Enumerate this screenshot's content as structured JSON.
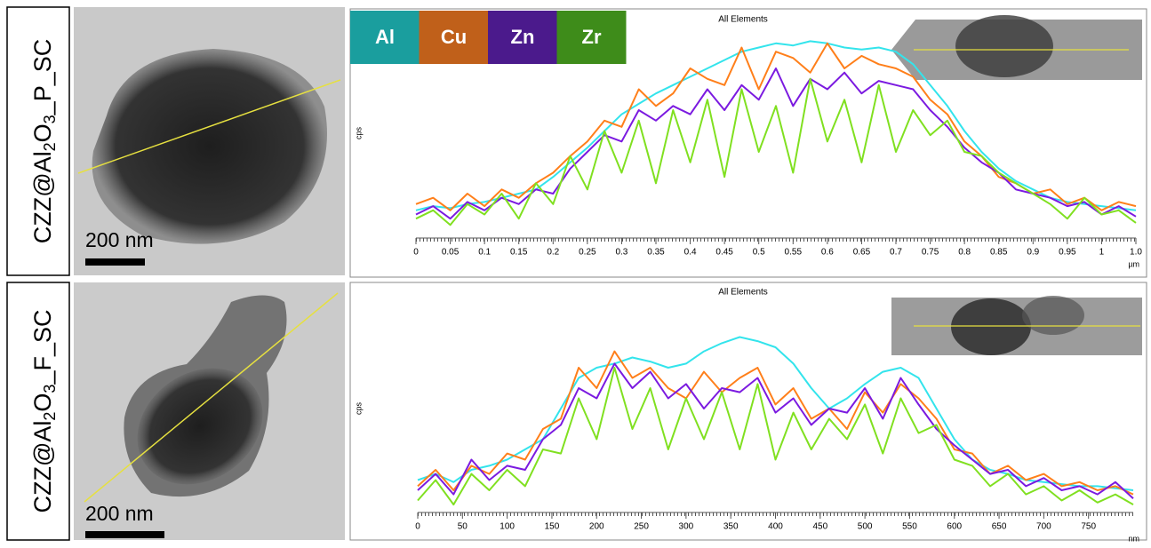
{
  "panels": [
    {
      "label_parts": [
        "CZZ@Al",
        "2",
        "O",
        "3",
        "_P_SC"
      ],
      "scale_bar": "200 nm"
    },
    {
      "label_parts": [
        "CZZ@Al",
        "2",
        "O",
        "3",
        "_F_SC"
      ],
      "scale_bar": "200 nm"
    }
  ],
  "chart_data": [
    {
      "type": "line",
      "title": "All Elements",
      "y_label": "cps",
      "x_unit": "µm",
      "legend": true,
      "x": [
        0,
        0.025,
        0.05,
        0.075,
        0.1,
        0.125,
        0.15,
        0.175,
        0.2,
        0.225,
        0.25,
        0.275,
        0.3,
        0.325,
        0.35,
        0.375,
        0.4,
        0.425,
        0.45,
        0.475,
        0.5,
        0.525,
        0.55,
        0.575,
        0.6,
        0.625,
        0.65,
        0.675,
        0.7,
        0.725,
        0.75,
        0.775,
        0.8,
        0.825,
        0.85,
        0.875,
        0.9,
        0.925,
        0.95,
        0.975,
        1,
        1.025,
        1.05
      ],
      "xlim": [
        0,
        1.05
      ],
      "xticks": [
        0,
        0.05,
        0.1,
        0.15,
        0.2,
        0.25,
        0.3,
        0.35,
        0.4,
        0.45,
        0.5,
        0.55,
        0.6,
        0.65,
        0.7,
        0.75,
        0.8,
        0.85,
        0.9,
        0.95,
        1,
        {
          "value": 1.05,
          "label": "1.0"
        }
      ],
      "ylim": [
        0,
        100
      ],
      "series": [
        {
          "name": "Al",
          "color": "#33e4ec",
          "legend_color": "#1a9e9e",
          "values": [
            12,
            14,
            13,
            15,
            16,
            18,
            20,
            22,
            28,
            35,
            42,
            50,
            58,
            63,
            68,
            72,
            76,
            80,
            84,
            88,
            90,
            92,
            91,
            93,
            92,
            90,
            89,
            90,
            88,
            82,
            72,
            62,
            50,
            40,
            32,
            26,
            22,
            18,
            16,
            15,
            14,
            13,
            12
          ]
        },
        {
          "name": "Cu",
          "color": "#ff7f1a",
          "legend_color": "#c0601a",
          "values": [
            15,
            18,
            12,
            20,
            14,
            22,
            18,
            25,
            30,
            38,
            45,
            55,
            52,
            70,
            62,
            68,
            80,
            75,
            72,
            90,
            70,
            88,
            85,
            78,
            92,
            80,
            86,
            82,
            80,
            76,
            65,
            58,
            45,
            38,
            28,
            25,
            20,
            22,
            15,
            18,
            12,
            16,
            14
          ]
        },
        {
          "name": "Zn",
          "color": "#7b1ae0",
          "legend_color": "#4b1a8c",
          "values": [
            10,
            14,
            8,
            16,
            12,
            18,
            15,
            22,
            20,
            32,
            40,
            48,
            45,
            60,
            55,
            62,
            58,
            70,
            60,
            72,
            65,
            80,
            62,
            75,
            70,
            78,
            68,
            74,
            72,
            70,
            60,
            52,
            42,
            35,
            30,
            22,
            20,
            18,
            14,
            16,
            10,
            14,
            9
          ]
        },
        {
          "name": "Zr",
          "color": "#80e020",
          "legend_color": "#3e8c1a",
          "values": [
            8,
            12,
            5,
            15,
            10,
            20,
            8,
            25,
            15,
            38,
            22,
            50,
            30,
            55,
            25,
            60,
            35,
            65,
            28,
            70,
            40,
            62,
            30,
            75,
            45,
            65,
            35,
            72,
            40,
            60,
            48,
            55,
            40,
            38,
            30,
            25,
            20,
            15,
            8,
            18,
            10,
            12,
            6
          ]
        }
      ]
    },
    {
      "type": "line",
      "title": "All Elements",
      "y_label": "cps",
      "x_unit": "nm",
      "legend": false,
      "x": [
        0,
        20,
        40,
        60,
        80,
        100,
        120,
        140,
        160,
        180,
        200,
        220,
        240,
        260,
        280,
        300,
        320,
        340,
        360,
        380,
        400,
        420,
        440,
        460,
        480,
        500,
        520,
        540,
        560,
        580,
        600,
        620,
        640,
        660,
        680,
        700,
        720,
        740,
        760,
        780,
        800
      ],
      "xlim": [
        0,
        800
      ],
      "xticks": [
        0,
        50,
        100,
        150,
        200,
        250,
        300,
        350,
        400,
        450,
        500,
        550,
        600,
        650,
        700,
        750
      ],
      "ylim": [
        0,
        100
      ],
      "series": [
        {
          "name": "Al",
          "color": "#33e4ec",
          "values": [
            15,
            18,
            14,
            20,
            22,
            25,
            30,
            35,
            50,
            65,
            70,
            72,
            75,
            73,
            70,
            72,
            78,
            82,
            85,
            83,
            80,
            72,
            60,
            50,
            55,
            62,
            68,
            70,
            65,
            50,
            35,
            25,
            20,
            18,
            15,
            14,
            13,
            12,
            12,
            11,
            10
          ]
        },
        {
          "name": "Cu",
          "color": "#ff7f1a",
          "values": [
            12,
            20,
            10,
            22,
            18,
            28,
            25,
            40,
            45,
            70,
            60,
            78,
            65,
            70,
            60,
            55,
            68,
            58,
            65,
            70,
            52,
            60,
            45,
            50,
            40,
            58,
            48,
            62,
            55,
            45,
            30,
            28,
            18,
            22,
            15,
            18,
            12,
            14,
            10,
            12,
            8
          ]
        },
        {
          "name": "Zn",
          "color": "#7b1ae0",
          "values": [
            10,
            18,
            8,
            25,
            15,
            22,
            20,
            35,
            42,
            60,
            55,
            72,
            60,
            68,
            55,
            62,
            50,
            60,
            58,
            65,
            48,
            55,
            42,
            50,
            48,
            60,
            45,
            65,
            52,
            40,
            32,
            25,
            18,
            20,
            12,
            16,
            10,
            12,
            8,
            14,
            6
          ]
        },
        {
          "name": "Zr",
          "color": "#80e020",
          "values": [
            5,
            15,
            3,
            18,
            10,
            20,
            12,
            30,
            28,
            55,
            35,
            70,
            40,
            60,
            30,
            55,
            35,
            58,
            30,
            62,
            25,
            48,
            30,
            45,
            35,
            52,
            28,
            55,
            38,
            42,
            25,
            22,
            12,
            18,
            8,
            12,
            5,
            10,
            4,
            8,
            3
          ]
        }
      ]
    }
  ]
}
